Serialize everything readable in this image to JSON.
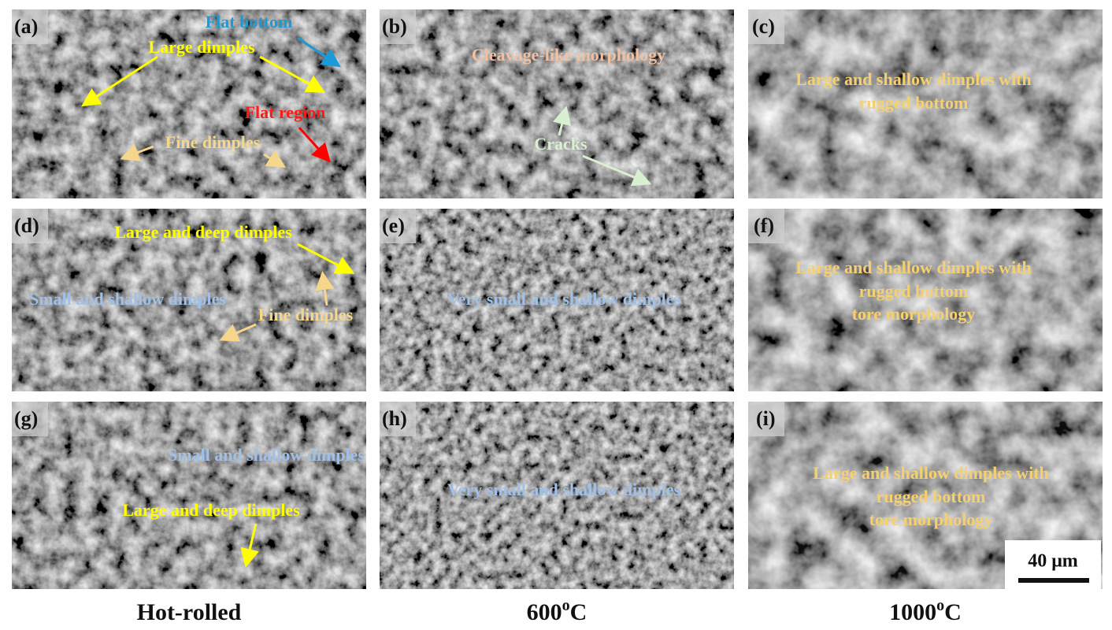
{
  "panels": [
    {
      "label": "(a)",
      "annotations": [
        "Flat bottom",
        "Large dimples",
        "Flat region",
        "Fine dimples"
      ]
    },
    {
      "label": "(b)",
      "annotations": [
        "Cleavage-like morphology",
        "Cracks"
      ]
    },
    {
      "label": "(c)",
      "annotations": [
        "Large and shallow dimples with",
        "rugged bottom"
      ]
    },
    {
      "label": "(d)",
      "annotations": [
        "Large and deep dimples",
        "Small and shallow dimples",
        "Fine dimples"
      ]
    },
    {
      "label": "(e)",
      "annotations": [
        "Very small and shallow dimples"
      ]
    },
    {
      "label": "(f)",
      "annotations": [
        "Large and shallow dimples with",
        "rugged bottom",
        "tore morphology"
      ]
    },
    {
      "label": "(g)",
      "annotations": [
        "Small and shallow dimples",
        "Large and deep dimples"
      ]
    },
    {
      "label": "(h)",
      "annotations": [
        "Very small and shallow dimples"
      ]
    },
    {
      "label": "(i)",
      "annotations": [
        "Large and shallow dimples with",
        "rugged bottom",
        "tore morphology"
      ]
    }
  ],
  "columns": [
    {
      "name": "Hot-rolled"
    },
    {
      "value": "600",
      "sup": "o",
      "unit": "C"
    },
    {
      "value": "1000",
      "sup": "o",
      "unit": "C"
    }
  ],
  "scale_bar": "40 μm"
}
